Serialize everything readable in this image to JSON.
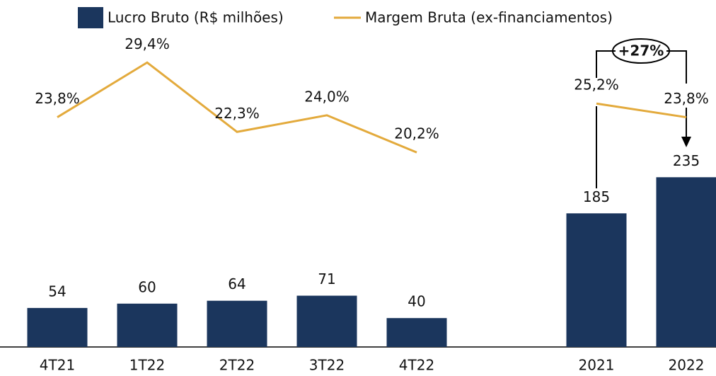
{
  "chart_data": {
    "type": "bar-line",
    "categories": [
      "4T21",
      "1T22",
      "2T22",
      "3T22",
      "4T22",
      null,
      "2021",
      "2022"
    ],
    "series": [
      {
        "name": "Lucro Bruto (R$ milhões)",
        "type": "bar",
        "color": "#1b365d",
        "values": [
          54,
          60,
          64,
          71,
          40,
          null,
          185,
          235
        ]
      },
      {
        "name": "Margem Bruta (ex-financiamentos)",
        "type": "line",
        "color": "#e3aa3c",
        "axis": "y2",
        "values": [
          23.8,
          29.4,
          22.3,
          24.0,
          20.2,
          null,
          25.2,
          23.8
        ],
        "value_labels": [
          "23,8%",
          "29,4%",
          "22,3%",
          "24,0%",
          "20,2%",
          null,
          "25,2%",
          "23,8%"
        ]
      }
    ],
    "annotations": [
      "+27%"
    ]
  }
}
